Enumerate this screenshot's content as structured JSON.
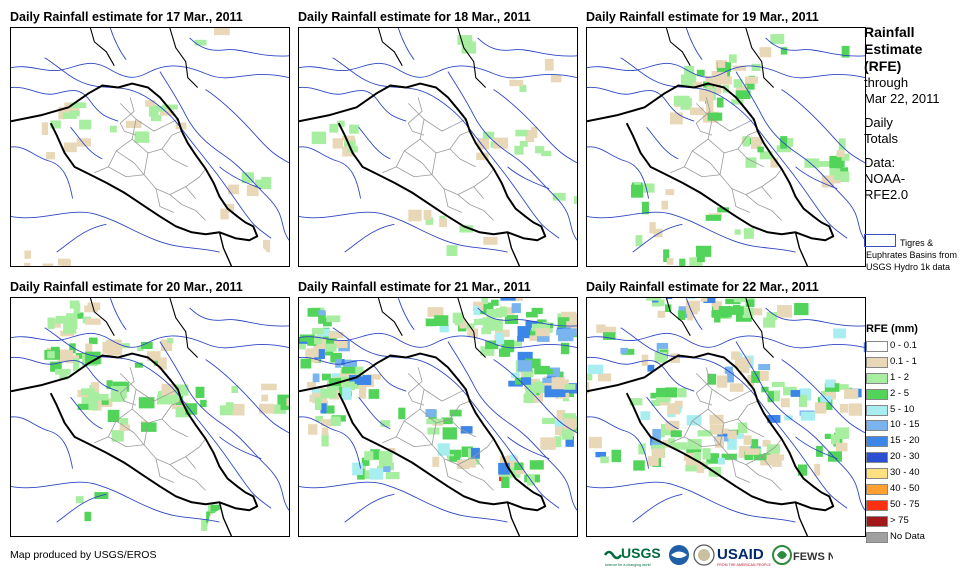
{
  "panels": [
    {
      "title": "Daily Rainfall estimate for 17 Mar., 2011",
      "level": 1
    },
    {
      "title": "Daily Rainfall estimate for 18 Mar., 2011",
      "level": 1
    },
    {
      "title": "Daily Rainfall estimate for 19 Mar., 2011",
      "level": 2
    },
    {
      "title": "Daily Rainfall estimate for 20 Mar., 2011",
      "level": 2
    },
    {
      "title": "Daily Rainfall estimate for 21 Mar., 2011",
      "level": 4
    },
    {
      "title": "Daily Rainfall estimate for 22 Mar., 2011",
      "level": 4
    }
  ],
  "sidebar": {
    "title_line1": "Rainfall",
    "title_line2": "Estimate",
    "title_line3": "(RFE)",
    "through": "through",
    "date": "Mar 22, 2011",
    "daily": "Daily",
    "totals": "Totals",
    "data_label": "Data:",
    "data_src1": "NOAA-",
    "data_src2": "RFE2.0"
  },
  "basin_note": "Tigres & Euphrates Basins from USGS Hydro 1k data",
  "legend": {
    "title": "RFE (mm)",
    "items": [
      {
        "label": "0 - 0.1",
        "color": "#ffffff"
      },
      {
        "label": "0.1 - 1",
        "color": "#e8d8b8"
      },
      {
        "label": "1 - 2",
        "color": "#a8eea0"
      },
      {
        "label": "2 - 5",
        "color": "#52d45a"
      },
      {
        "label": "5 - 10",
        "color": "#a8eef0"
      },
      {
        "label": "10 - 15",
        "color": "#7ab4ef"
      },
      {
        "label": "15 - 20",
        "color": "#3c86e8"
      },
      {
        "label": "20 - 30",
        "color": "#2a4fd0"
      },
      {
        "label": "30 - 40",
        "color": "#ffe080"
      },
      {
        "label": "40 - 50",
        "color": "#ffa030"
      },
      {
        "label": "50 - 75",
        "color": "#ff3010"
      },
      {
        "label": "> 75",
        "color": "#a01818"
      },
      {
        "label": "No Data",
        "color": "#a0a0a0"
      }
    ]
  },
  "credit": "Map produced by USGS/EROS",
  "logos": {
    "usgs": "USGS",
    "usgs_tag": "science for a changing world",
    "usaid": "USAID",
    "usaid_tag": "FROM THE AMERICAN PEOPLE",
    "fews": "FEWS NET"
  }
}
